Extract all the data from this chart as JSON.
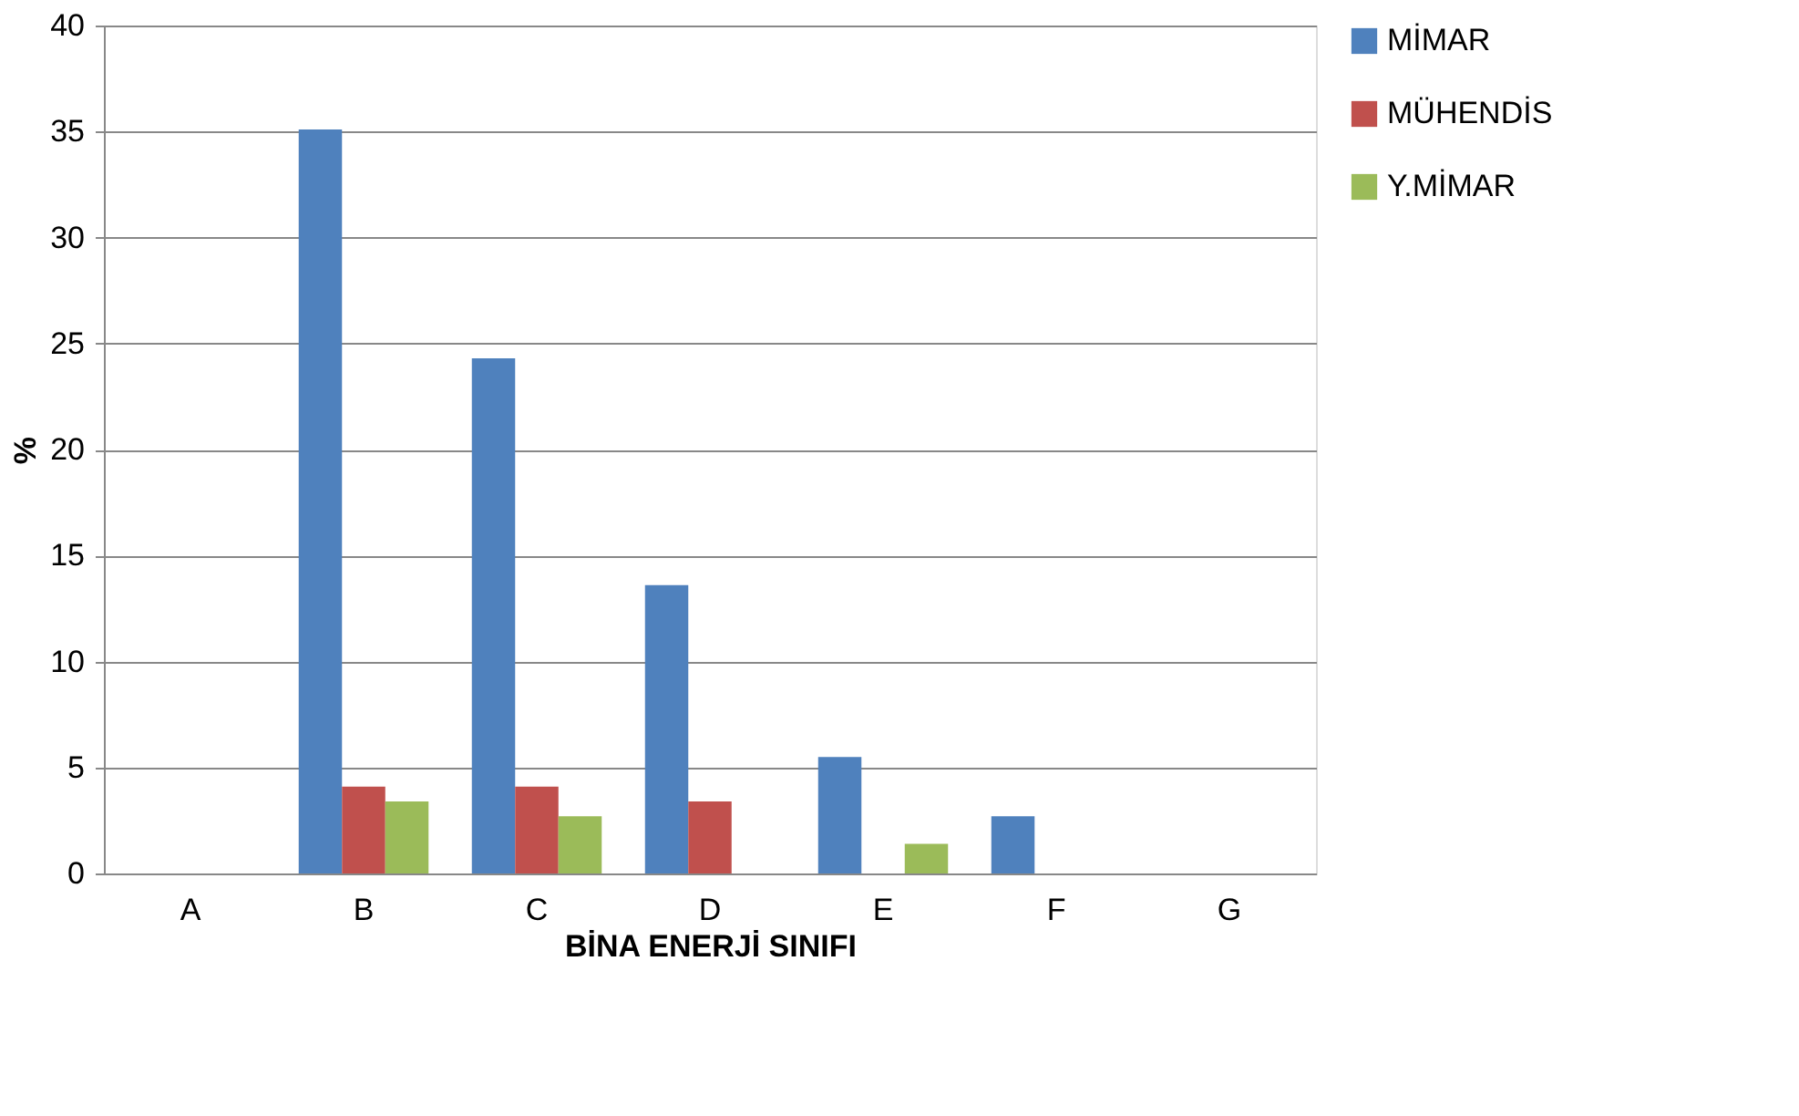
{
  "chart_data": {
    "type": "bar",
    "xlabel": "BİNA ENERJİ SINIFI",
    "ylabel": "%",
    "categories": [
      "A",
      "B",
      "C",
      "D",
      "E",
      "F",
      "G"
    ],
    "series": [
      {
        "name": "MİMAR",
        "color": "#4f81bd",
        "values": [
          0,
          35.1,
          24.3,
          13.6,
          5.5,
          2.7,
          0
        ]
      },
      {
        "name": "MÜHENDİS",
        "color": "#c0504d",
        "values": [
          0,
          4.1,
          4.1,
          3.4,
          0,
          0,
          0
        ]
      },
      {
        "name": "Y.MİMAR",
        "color": "#9bbb59",
        "values": [
          0,
          3.4,
          2.7,
          0,
          1.4,
          0,
          0
        ]
      }
    ],
    "ylim": [
      0,
      40
    ],
    "yticks": [
      0,
      5,
      10,
      15,
      20,
      25,
      30,
      35,
      40
    ],
    "grid": "y",
    "legend": "right"
  }
}
